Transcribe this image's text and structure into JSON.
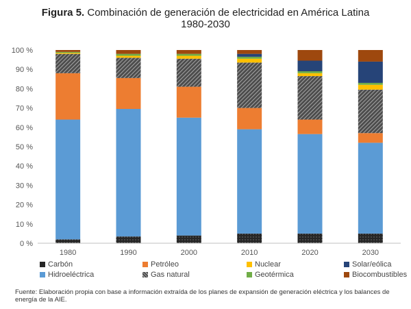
{
  "title": {
    "lead": "Figura 5.",
    "rest": "Combinación de generación de electricidad en América Latina",
    "line2": "1980-2030"
  },
  "source": "Fuente: Elaboración propia con base a información extraída de los planes de expansión de generación eléctrica y los balances de energía de la AIE.",
  "colors": {
    "carbon": "#2b2b2b",
    "hidro": "#5b9bd5",
    "petroleo": "#ed7d31",
    "gas": "#7a7a7a",
    "nuclear": "#ffc000",
    "geotermica": "#70ad47",
    "solar": "#264478",
    "bio": "#9e480e"
  },
  "chart_data": {
    "type": "bar",
    "stacked": true,
    "categories": [
      "1980",
      "1990",
      "2000",
      "2010",
      "2020",
      "2030"
    ],
    "ylim": [
      0,
      100
    ],
    "yticks": [
      "0 %",
      "10 %",
      "20 %",
      "30 %",
      "40 %",
      "50 %",
      "60 %",
      "70 %",
      "80 %",
      "90 %",
      "100 %"
    ],
    "series": [
      {
        "key": "carbon",
        "name": "Carbón",
        "values": [
          2,
          3.5,
          4,
          5,
          5,
          5
        ]
      },
      {
        "key": "hidro",
        "name": "Hidroeléctrica",
        "values": [
          62,
          66,
          61,
          54,
          51.5,
          47
        ]
      },
      {
        "key": "petroleo",
        "name": "Petróleo",
        "values": [
          24,
          16,
          16,
          11,
          7.5,
          5
        ]
      },
      {
        "key": "gas",
        "name": "Gas natural",
        "values": [
          10,
          10.5,
          14.5,
          23.5,
          22.5,
          22.5
        ]
      },
      {
        "key": "nuclear",
        "name": "Nuclear",
        "values": [
          0.5,
          1,
          1.5,
          2,
          1.5,
          2.5
        ]
      },
      {
        "key": "geotermica",
        "name": "Geotérmica",
        "values": [
          0.5,
          1,
          1,
          1,
          1,
          1
        ]
      },
      {
        "key": "solar",
        "name": "Solar/eólica",
        "values": [
          0,
          0,
          0,
          1.5,
          5.5,
          11
        ]
      },
      {
        "key": "bio",
        "name": "Biocombustibles",
        "values": [
          1,
          2,
          2,
          2,
          5.5,
          6
        ]
      }
    ],
    "legend": [
      [
        "carbon",
        "petroleo",
        "nuclear",
        "solar"
      ],
      [
        "hidro",
        "gas",
        "geotermica",
        "bio"
      ]
    ],
    "legend_position": "bottom",
    "grid": false
  }
}
